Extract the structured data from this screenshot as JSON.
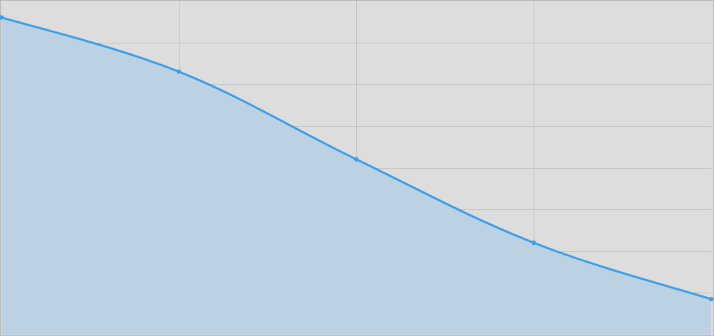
{
  "chart_data": {
    "type": "area",
    "title": "",
    "xlabel": "",
    "ylabel": "",
    "x": [
      0,
      1,
      2,
      3,
      4
    ],
    "series": [
      {
        "values": [
          7.6,
          6.3,
          4.2,
          2.2,
          0.85
        ]
      }
    ],
    "xlim": [
      0,
      4
    ],
    "ylim": [
      0,
      8
    ],
    "grid": true,
    "legend": "none",
    "colors": {
      "background": "#dddddd",
      "grid": "#c2c2c2",
      "border": "#b5b5b5",
      "line": "#3a9ee8",
      "fill": "#bcd2e2"
    }
  }
}
